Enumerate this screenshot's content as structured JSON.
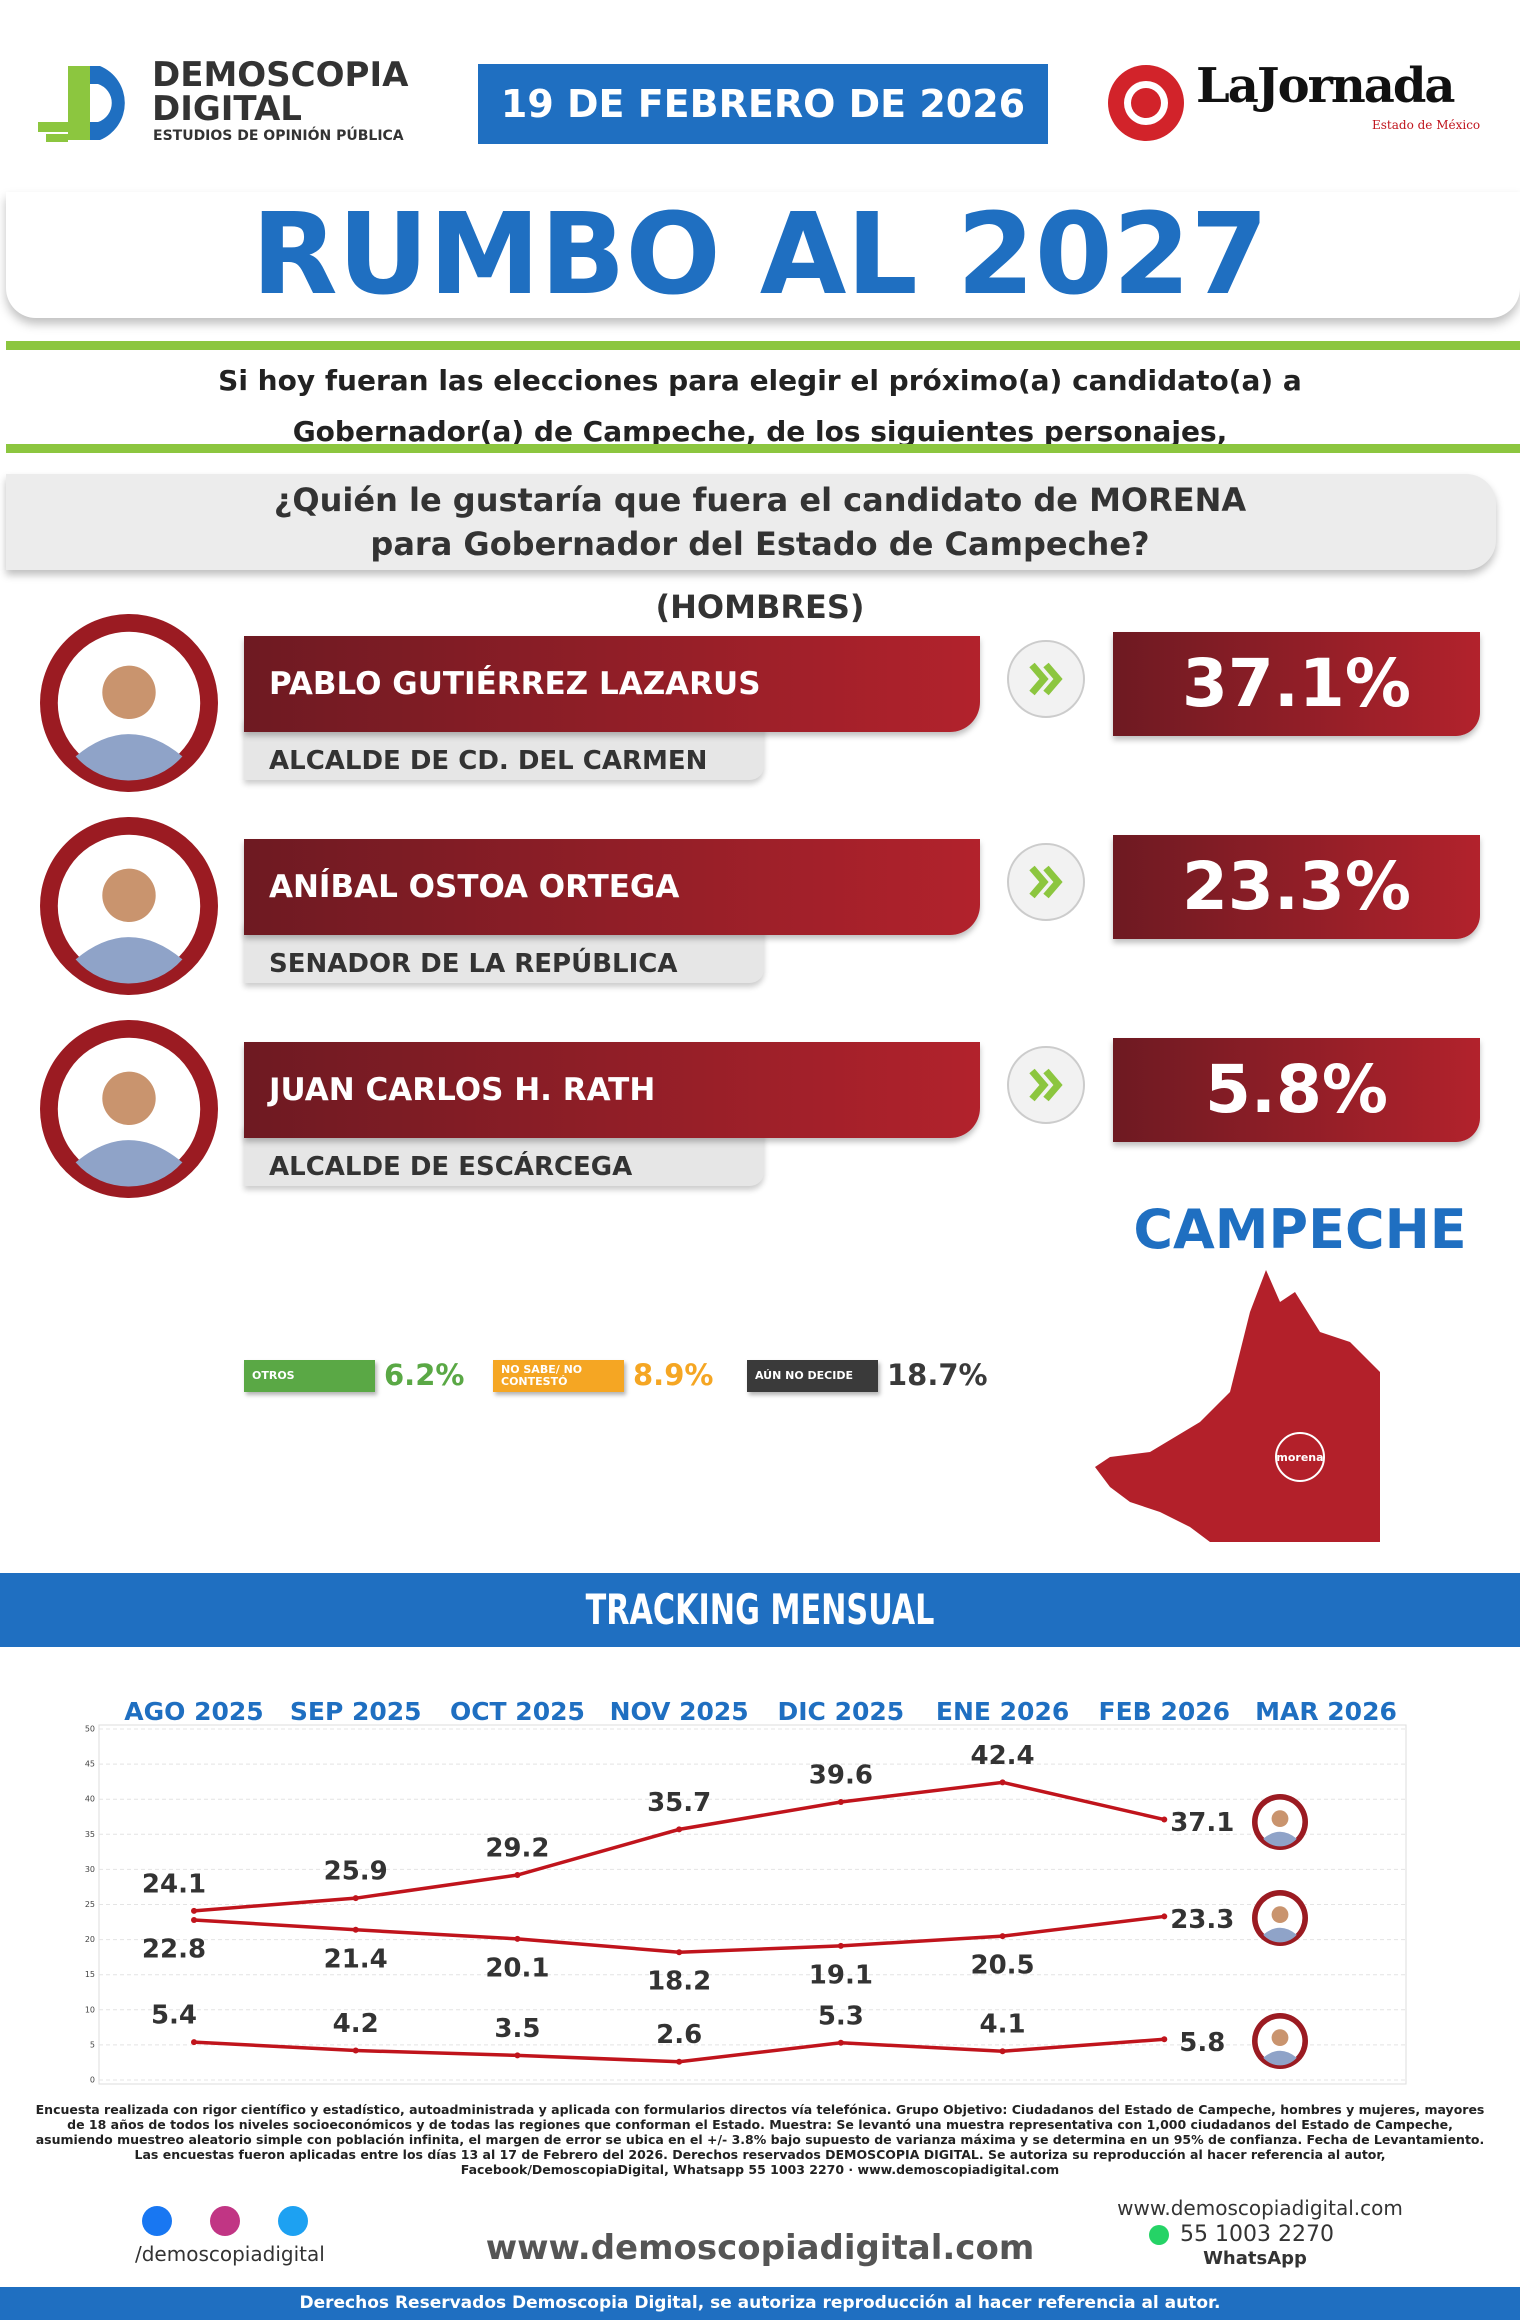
{
  "header": {
    "brand_line1": "DEMOSCOPIA",
    "brand_line2": "DIGITAL",
    "brand_tagline": "ESTUDIOS DE OPINIÓN PÚBLICA",
    "date": "19 DE FEBRERO DE 2026",
    "partner": "LaJornada",
    "partner_sub": "Estado de México"
  },
  "title": "RUMBO AL 2027",
  "intro": [
    "Si hoy fueran las elecciones para elegir el próximo(a) candidato(a) a",
    "Gobernador(a) de Campeche, de los siguientes personajes,"
  ],
  "question": [
    "¿Quién le gustaría que fuera el candidato de MORENA",
    "para Gobernador del Estado de Campeche?"
  ],
  "group": "(HOMBRES)",
  "candidates": [
    {
      "name": "PABLO GUTIÉRREZ LAZARUS",
      "role": "ALCALDE DE CD. DEL CARMEN",
      "result": "37.1%"
    },
    {
      "name": "ANÍBAL OSTOA ORTEGA",
      "role": "SENADOR DE LA REPÚBLICA",
      "result": "23.3%"
    },
    {
      "name": "JUAN CARLOS H. RATH",
      "role": "ALCALDE DE ESCÁRCEGA",
      "result": "5.8%"
    }
  ],
  "others": [
    {
      "label": "OTROS",
      "result": "6.2%",
      "color": "#5aa845"
    },
    {
      "label": "NO SABE/ NO CONTESTÓ",
      "result": "8.9%",
      "color": "#f5a623"
    },
    {
      "label": "AÚN NO DECIDE",
      "result": "18.7%",
      "color": "#3a3a3a"
    }
  ],
  "state": "CAMPECHE",
  "map_label": "morena",
  "tracking_title": "TRACKING MENSUAL",
  "chart_data": {
    "type": "line",
    "categories": [
      "AGO 2025",
      "SEP 2025",
      "OCT 2025",
      "NOV 2025",
      "DIC 2025",
      "ENE 2026",
      "FEB 2026",
      "MAR 2026"
    ],
    "series": [
      {
        "color": "#c0141c",
        "values": [
          24.1,
          25.9,
          29.2,
          35.7,
          39.6,
          42.4,
          37.1,
          null
        ]
      },
      {
        "color": "#c0141c",
        "values": [
          22.8,
          21.4,
          20.1,
          18.2,
          19.1,
          20.5,
          23.3,
          null
        ]
      },
      {
        "color": "#c0141c",
        "values": [
          5.4,
          4.2,
          3.5,
          2.6,
          5.3,
          4.1,
          5.8,
          null
        ]
      }
    ],
    "ylim": [
      0,
      50
    ],
    "yticks": [
      0,
      5,
      10,
      15,
      20,
      25,
      30,
      35,
      40,
      45,
      50
    ],
    "grid": true
  },
  "footer": {
    "methodology": "Encuesta realizada con rigor científico y estadístico, autoadministrada y aplicada con formularios directos vía telefónica. Grupo Objetivo: Ciudadanos del Estado de Campeche, hombres y mujeres, mayores de 18 años de todos los niveles socioeconómicos y de todas las regiones que conforman el Estado. Muestra: Se levantó una muestra representativa con 1,000 ciudadanos del Estado de Campeche, asumiendo muestreo aleatorio simple con población infinita, el margen de error se ubica en el +/- 3.8% bajo supuesto de varianza máxima y se determina en un 95% de confianza. Fecha de Levantamiento. Las encuestas fueron aplicadas entre los días 13 al 17 de Febrero del 2026. Derechos reservados DEMOSCOPIA DIGITAL. Se autoriza su reproducción al hacer referencia al autor, Facebook/DemoscopiaDigital, Whatsapp 55 1003 2270 · www.demoscopiadigital.com",
    "social_handle": "/demoscopiadigital",
    "website": "www.demoscopiadigital.com",
    "contact_web": "www.demoscopiadigital.com",
    "phone": "55 1003 2270",
    "phone_label": "WhatsApp",
    "rights": "Derechos Reservados Demoscopia Digital, se autoriza reproducción al hacer referencia al autor."
  }
}
